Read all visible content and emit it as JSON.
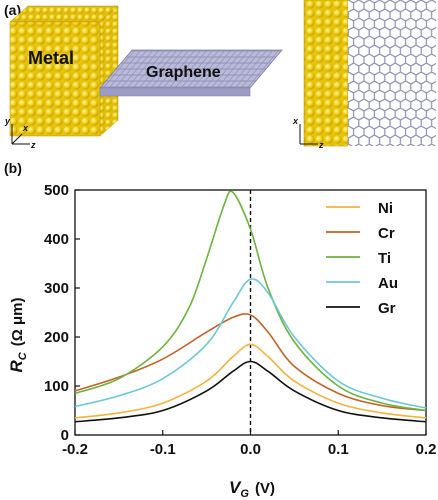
{
  "panel_a": {
    "label": "(a)",
    "metal_label": "Metal",
    "graphene_label": "Graphene",
    "axes_left": {
      "y": "y",
      "x": "x",
      "z": "z"
    },
    "axes_right": {
      "x": "x",
      "z": "z"
    },
    "colors": {
      "metal": "#f2d21a",
      "graphene": "#a9a9cc"
    }
  },
  "panel_b": {
    "label": "(b)"
  },
  "chart_data": {
    "type": "line",
    "xlabel_main": "V",
    "xlabel_sub": "G",
    "xlabel_unit": "(V)",
    "ylabel_main": "R",
    "ylabel_sub": "C",
    "ylabel_unit": "(Ω μm)",
    "xlim": [
      -0.2,
      0.2
    ],
    "ylim": [
      0,
      500
    ],
    "xticks": [
      "-0.2",
      "-0.1",
      "0.0",
      "0.1",
      "0.2"
    ],
    "yticks": [
      "0",
      "100",
      "200",
      "300",
      "400",
      "500"
    ],
    "vline_x": 0.0,
    "legend_position": "top-right",
    "series": [
      {
        "name": "Ni",
        "color": "#f2b33d",
        "x": [
          -0.2,
          -0.15,
          -0.1,
          -0.05,
          -0.02,
          0.0,
          0.02,
          0.05,
          0.1,
          0.15,
          0.2
        ],
        "y": [
          35,
          45,
          65,
          110,
          160,
          185,
          160,
          110,
          65,
          45,
          35
        ]
      },
      {
        "name": "Cr",
        "color": "#c0622a",
        "x": [
          -0.2,
          -0.15,
          -0.1,
          -0.05,
          -0.02,
          0.0,
          0.02,
          0.05,
          0.1,
          0.15,
          0.2
        ],
        "y": [
          90,
          118,
          155,
          210,
          240,
          245,
          210,
          140,
          85,
          60,
          50
        ]
      },
      {
        "name": "Ti",
        "color": "#6cb33f",
        "x": [
          -0.2,
          -0.15,
          -0.1,
          -0.07,
          -0.05,
          -0.03,
          -0.02,
          0.0,
          0.02,
          0.05,
          0.1,
          0.15,
          0.2
        ],
        "y": [
          85,
          115,
          180,
          260,
          360,
          470,
          495,
          420,
          300,
          190,
          100,
          65,
          50
        ]
      },
      {
        "name": "Au",
        "color": "#6cc8d4",
        "x": [
          -0.2,
          -0.15,
          -0.1,
          -0.05,
          -0.02,
          0.0,
          0.02,
          0.05,
          0.1,
          0.15,
          0.2
        ],
        "y": [
          58,
          80,
          115,
          185,
          270,
          318,
          290,
          200,
          110,
          75,
          55
        ]
      },
      {
        "name": "Gr",
        "color": "#111111",
        "x": [
          -0.2,
          -0.15,
          -0.1,
          -0.05,
          -0.02,
          0.0,
          0.02,
          0.05,
          0.1,
          0.15,
          0.2
        ],
        "y": [
          27,
          35,
          50,
          90,
          130,
          150,
          130,
          90,
          50,
          35,
          27
        ]
      }
    ]
  }
}
